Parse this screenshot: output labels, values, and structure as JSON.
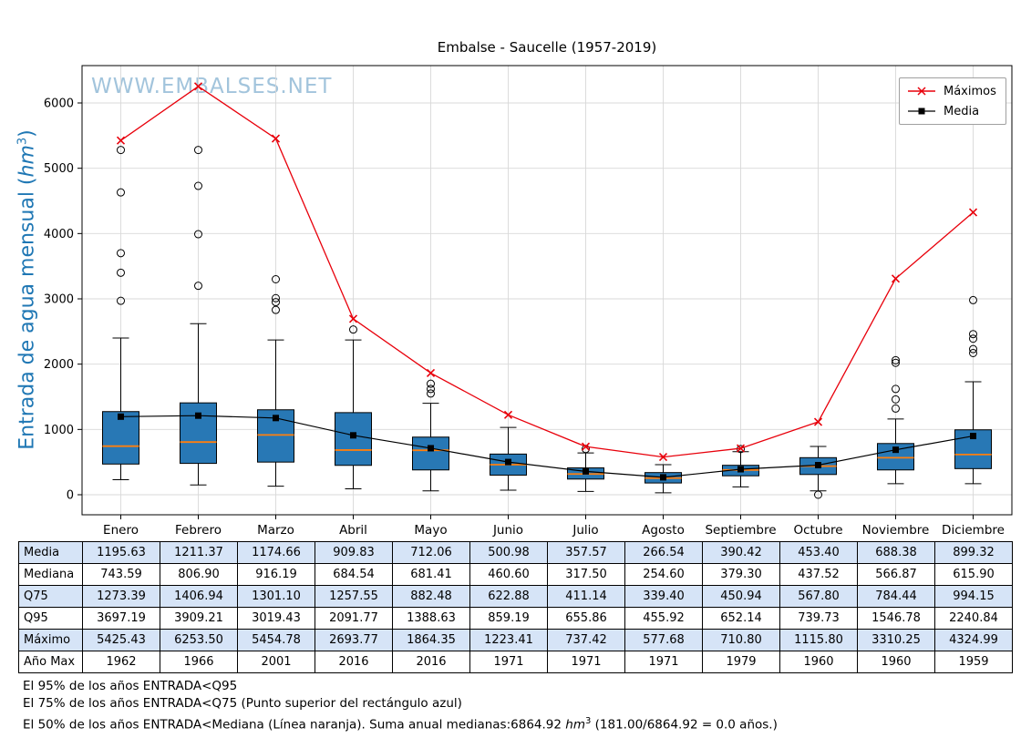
{
  "title": "Embalse - Saucelle (1957-2019)",
  "watermark": "WWW.EMBALSES.NET",
  "y_axis": {
    "pre": "Entrada de agua mensual (",
    "unit": "hm",
    "sup": "3",
    "post": ")"
  },
  "table": {
    "row_labels": [
      "Media",
      "Mediana",
      "Q75",
      "Q95",
      "Máximo",
      "Año Max"
    ]
  },
  "footnotes": {
    "line1": "El 95% de los años ENTRADA<Q95",
    "line2": "El 75% de los años ENTRADA<Q75 (Punto superior del rectángulo azul)",
    "line3_pre": "El 50% de los años ENTRADA<Mediana (Línea naranja). Suma anual medianas:6864.92 ",
    "line3_unit": "hm",
    "line3_sup": "3",
    "line3_post": " (181.00/6864.92 = 0.0 años.)"
  },
  "chart_data": {
    "type": "boxplot",
    "title": "Embalse - Saucelle (1957-2019)",
    "ylabel": "Entrada de agua mensual (hm3)",
    "categories": [
      "Enero",
      "Febrero",
      "Marzo",
      "Abril",
      "Mayo",
      "Junio",
      "Julio",
      "Agosto",
      "Septiembre",
      "Octubre",
      "Noviembre",
      "Diciembre"
    ],
    "yticks": [
      0,
      1000,
      2000,
      3000,
      4000,
      5000,
      6000
    ],
    "ylim": [
      -300,
      6570
    ],
    "grid": true,
    "legend_position": "top-right",
    "series": [
      {
        "name": "Máximos",
        "type": "line",
        "marker": "x",
        "color": "#e8000b",
        "values": [
          5425.43,
          6253.5,
          5454.78,
          2693.77,
          1864.35,
          1223.41,
          737.42,
          577.68,
          710.8,
          1115.8,
          3310.25,
          4324.99
        ]
      },
      {
        "name": "Media",
        "type": "line",
        "marker": "square",
        "color": "#000000",
        "values": [
          1195.63,
          1211.37,
          1174.66,
          909.83,
          712.06,
          500.98,
          357.57,
          266.54,
          390.42,
          453.4,
          688.38,
          899.32
        ]
      }
    ],
    "boxes": {
      "mediana": [
        743.59,
        806.9,
        916.19,
        684.54,
        681.41,
        460.6,
        317.5,
        254.6,
        379.3,
        437.52,
        566.87,
        615.9
      ],
      "q75": [
        1273.39,
        1406.94,
        1301.1,
        1257.55,
        882.48,
        622.88,
        411.14,
        339.4,
        450.94,
        567.8,
        784.44,
        994.15
      ],
      "q95": [
        3697.19,
        3909.21,
        3019.43,
        2091.77,
        1388.63,
        859.19,
        655.86,
        455.92,
        652.14,
        739.73,
        1546.78,
        2240.84
      ],
      "q25_est": [
        470,
        480,
        500,
        450,
        380,
        300,
        240,
        180,
        290,
        310,
        380,
        400
      ],
      "whisker_low_est": [
        230,
        150,
        130,
        90,
        60,
        70,
        50,
        30,
        120,
        60,
        170,
        170
      ],
      "whisker_high_est": [
        2400,
        2620,
        2370,
        2370,
        1400,
        1030,
        640,
        460,
        660,
        740,
        1160,
        1730
      ],
      "outliers_est": [
        [
          2970,
          3400,
          3700,
          4630,
          5280
        ],
        [
          3200,
          3990,
          4730,
          5280
        ],
        [
          2830,
          2950,
          3010,
          3300
        ],
        [
          2530
        ],
        [
          1550,
          1620,
          1700
        ],
        [],
        [
          700
        ],
        [],
        [
          700
        ],
        [
          0
        ],
        [
          1320,
          1460,
          1620,
          2020,
          2060
        ],
        [
          2170,
          2230,
          2390,
          2460,
          2980
        ]
      ]
    },
    "anio_max": [
      1962,
      1966,
      2001,
      2016,
      2016,
      1971,
      1971,
      1971,
      1979,
      1960,
      1960,
      1959
    ],
    "colors": {
      "box": "#2878b5",
      "median": "#ff7f0e",
      "max": "#e8000b",
      "media": "#000000",
      "grid": "#d9d9d9",
      "table_alt_row": "#d6e4f7",
      "axis_label": "#1f77b4",
      "watermark": "#a2c4dc"
    }
  }
}
